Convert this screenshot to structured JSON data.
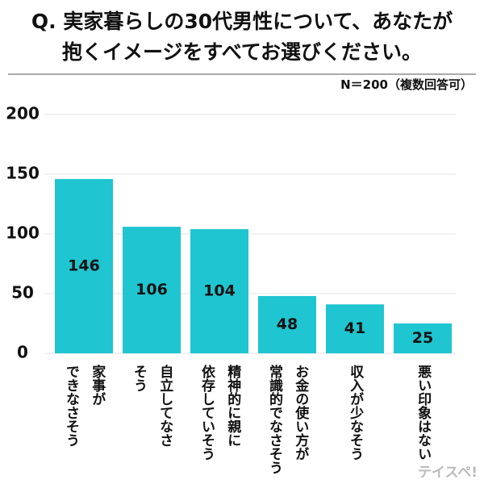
{
  "chart_data": {
    "type": "bar",
    "title": "Q. 実家暮らしの30代男性について、あなたが\n抱くイメージをすべてお選びください。",
    "note": "N＝200（複数回答可）",
    "categories": [
      "家事が\nできなさそう",
      "自立してなさ\nそう",
      "精神的に親に\n依存していそう",
      "お金の使い方が\n常識的でなさそう",
      "収入が少なそう",
      "悪い印象はない"
    ],
    "values": [
      146,
      106,
      104,
      48,
      41,
      25
    ],
    "color": "#1fc5d0",
    "ylim": [
      0,
      200
    ],
    "yticks": [
      0,
      50,
      100,
      150,
      200
    ],
    "grid": true,
    "watermark": "テイスペ!"
  }
}
